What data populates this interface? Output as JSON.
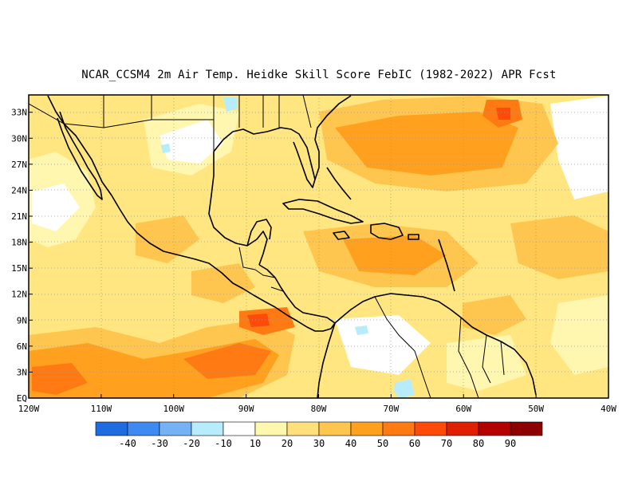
{
  "title": "NCAR_CCSM4  2m Air Temp. Heidke Skill Score FebIC (1982-2022) APR Fcst",
  "lat_labels": [
    "EQ",
    "3N",
    "6N",
    "9N",
    "12N",
    "15N",
    "18N",
    "21N",
    "24N",
    "27N",
    "30N",
    "33N"
  ],
  "lon_labels": [
    "120W",
    "110W",
    "100W",
    "90W",
    "80W",
    "70W",
    "60W",
    "50W",
    "40W"
  ],
  "map": {
    "lon_range": [
      -120,
      -40
    ],
    "lat_range": [
      0,
      35
    ]
  },
  "colorbar": {
    "labels": [
      "-40",
      "-30",
      "-20",
      "-10",
      "10",
      "20",
      "30",
      "40",
      "50",
      "60",
      "70",
      "80",
      "90"
    ],
    "colors": [
      "#1f6be0",
      "#3f8af0",
      "#74b2f5",
      "#b6ecfb",
      "#ffffff",
      "#fff6b0",
      "#ffe07a",
      "#ffc64f",
      "#ffa11f",
      "#ff7a12",
      "#ff4a0a",
      "#e01e00",
      "#b50000",
      "#8c0000"
    ]
  }
}
